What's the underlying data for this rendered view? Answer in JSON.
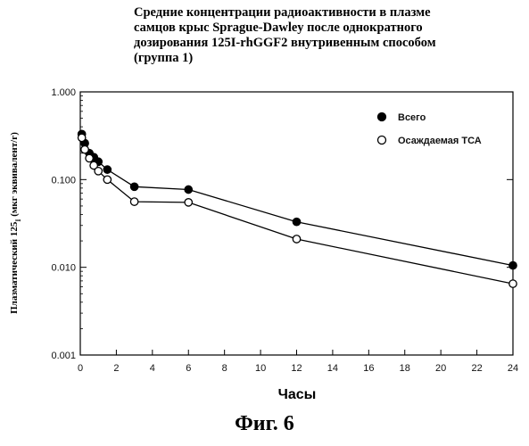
{
  "title_lines": [
    "Средние концентрации радиоактивности в плазме",
    "самцов крыс Sprague-Dawley после однократного",
    "дозирования 125I-rhGGF2 внутривенным способом",
    "(группа 1)"
  ],
  "figure_label": "Фиг. 6",
  "chart_data": {
    "type": "line",
    "title": "Средние концентрации радиоактивности в плазме самцов крыс Sprague-Dawley после однократного дозирования 125I-rhGGF2 внутривенным способом (группа 1)",
    "xlabel": "Часы",
    "ylabel": "Плазматический 125I (мкг эквивалент/г)",
    "ylabel_main": "Плазматический 125",
    "ylabel_sup": "I",
    "ylabel_unit": " (мкг эквивалент/г)",
    "xlim": [
      0,
      24
    ],
    "ylim": [
      0.001,
      1.0
    ],
    "yscale": "log",
    "xticks": [
      0,
      2,
      4,
      6,
      8,
      10,
      12,
      14,
      16,
      18,
      20,
      22,
      24
    ],
    "yticks": [
      {
        "value": 1.0,
        "label": "1.000"
      },
      {
        "value": 0.1,
        "label": "0.100"
      },
      {
        "value": 0.01,
        "label": "0.010"
      },
      {
        "value": 0.001,
        "label": "0.001"
      }
    ],
    "grid": false,
    "legend_position": "top-right",
    "series": [
      {
        "name": "Всего",
        "marker": "filled-circle",
        "color": "#000000",
        "x": [
          0.083,
          0.25,
          0.5,
          0.75,
          1.0,
          1.5,
          3,
          6,
          12,
          24
        ],
        "y": [
          0.33,
          0.26,
          0.2,
          0.18,
          0.16,
          0.13,
          0.083,
          0.077,
          0.033,
          0.0105
        ]
      },
      {
        "name": "Осаждаемая ТСА",
        "marker": "open-circle",
        "color": "#000000",
        "x": [
          0.083,
          0.25,
          0.5,
          0.75,
          1.0,
          1.5,
          3,
          6,
          12,
          24
        ],
        "y": [
          0.3,
          0.22,
          0.175,
          0.145,
          0.125,
          0.1,
          0.056,
          0.055,
          0.021,
          0.0065
        ]
      }
    ]
  }
}
